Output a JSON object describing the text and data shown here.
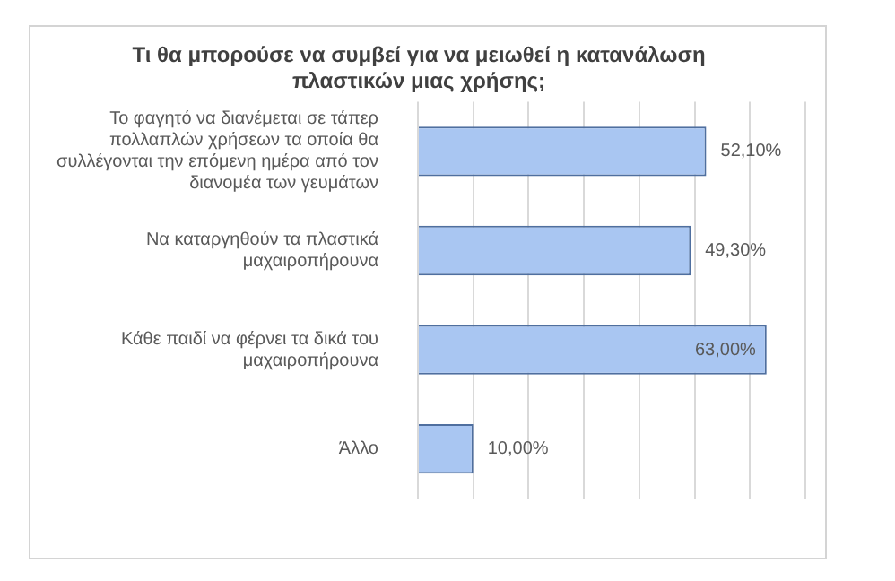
{
  "chart_data": {
    "type": "bar",
    "orientation": "horizontal",
    "title": "Τι θα μπορούσε να συμβεί για να μειωθεί η κατανάλωση πλαστικών μιας χρήσης;",
    "categories": [
      "Το φαγητό να διανέμεται σε τάπερ πολλαπλών χρήσεων τα οποία θα συλλέγονται την επόμενη ημέρα από τον διανομέα των γευμάτων",
      "Να καταργηθούν τα πλαστικά μαχαιροπήρουνα",
      "Κάθε παιδί να φέρνει τα δικά του μαχαιροπήρουνα",
      "Άλλο"
    ],
    "values": [
      52.1,
      49.3,
      63.0,
      10.0
    ],
    "value_labels": [
      "52,10%",
      "49,30%",
      "63,00%",
      "10,00%"
    ],
    "color": "#a9c6f2",
    "xlim": [
      0,
      70
    ],
    "xticks": [
      {
        "value": 0,
        "label": null
      },
      {
        "value": 10,
        "label": null
      },
      {
        "value": 20,
        "label": null
      },
      {
        "value": 30,
        "label": null
      },
      {
        "value": 40,
        "label": null
      },
      {
        "value": 50,
        "label": null
      },
      {
        "value": 60,
        "label": null
      },
      {
        "value": 70,
        "label": null
      }
    ],
    "grid": "x",
    "tick_labels": "y",
    "legend": false
  }
}
